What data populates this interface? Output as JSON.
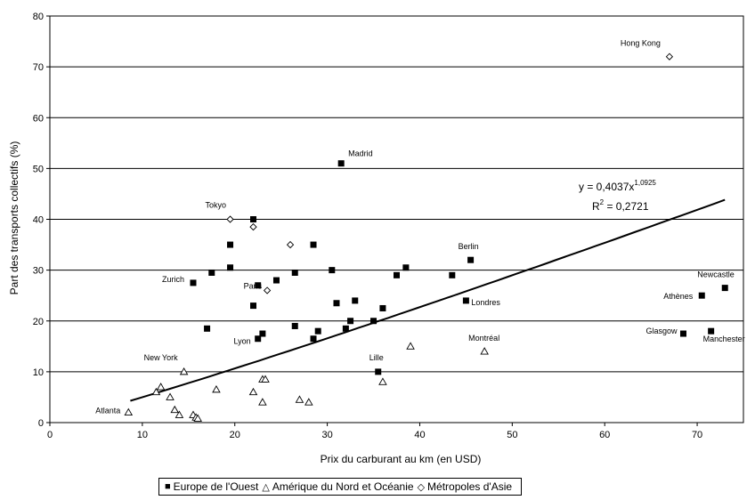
{
  "chart_data": {
    "type": "scatter",
    "xlabel": "Prix du carburant au km (en USD)",
    "ylabel": "Part des transports collectifs (%)",
    "xlim": [
      0,
      75
    ],
    "ylim": [
      0,
      80
    ],
    "xticks": [
      0,
      10,
      20,
      30,
      40,
      50,
      60,
      70
    ],
    "yticks": [
      0,
      10,
      20,
      30,
      40,
      50,
      60,
      70,
      80
    ],
    "grid": "horizontal",
    "legend_position": "bottom",
    "series": [
      {
        "name": "Europe de l'Ouest",
        "marker": "square",
        "points": [
          {
            "x": 31.5,
            "y": 51.0,
            "label": "Madrid"
          },
          {
            "x": 22.0,
            "y": 40.0
          },
          {
            "x": 19.5,
            "y": 35.0
          },
          {
            "x": 28.5,
            "y": 35.0
          },
          {
            "x": 19.5,
            "y": 30.5
          },
          {
            "x": 17.5,
            "y": 29.5
          },
          {
            "x": 15.5,
            "y": 27.5,
            "label": "Zurich"
          },
          {
            "x": 22.5,
            "y": 27.0
          },
          {
            "x": 24.5,
            "y": 28.0
          },
          {
            "x": 26.5,
            "y": 29.5
          },
          {
            "x": 30.5,
            "y": 30.0
          },
          {
            "x": 38.5,
            "y": 30.5
          },
          {
            "x": 37.5,
            "y": 29.0
          },
          {
            "x": 43.5,
            "y": 29.0
          },
          {
            "x": 45.5,
            "y": 32.0,
            "label": "Berlin"
          },
          {
            "x": 22.0,
            "y": 23.0
          },
          {
            "x": 31.0,
            "y": 23.5
          },
          {
            "x": 33.0,
            "y": 24.0
          },
          {
            "x": 36.0,
            "y": 22.5
          },
          {
            "x": 45.0,
            "y": 24.0,
            "label": "Londres"
          },
          {
            "x": 17.0,
            "y": 18.5
          },
          {
            "x": 22.5,
            "y": 16.5,
            "label": "Lyon"
          },
          {
            "x": 23.0,
            "y": 17.5
          },
          {
            "x": 26.5,
            "y": 19.0
          },
          {
            "x": 28.5,
            "y": 16.5
          },
          {
            "x": 29.0,
            "y": 18.0
          },
          {
            "x": 32.0,
            "y": 18.5
          },
          {
            "x": 32.5,
            "y": 20.0
          },
          {
            "x": 35.0,
            "y": 20.0
          },
          {
            "x": 35.5,
            "y": 10.0,
            "label": "Lille"
          },
          {
            "x": 68.5,
            "y": 17.5,
            "label": "Glasgow"
          },
          {
            "x": 71.5,
            "y": 18.0,
            "label": "Manchester"
          },
          {
            "x": 70.5,
            "y": 25.0,
            "label": "Athènes"
          },
          {
            "x": 73.0,
            "y": 26.5,
            "label": "Newcastle"
          }
        ]
      },
      {
        "name": "Amérique du Nord et Océanie",
        "marker": "triangle",
        "points": [
          {
            "x": 8.5,
            "y": 2.0,
            "label": "Atlanta"
          },
          {
            "x": 11.5,
            "y": 6.0
          },
          {
            "x": 12.0,
            "y": 7.0
          },
          {
            "x": 13.0,
            "y": 5.0
          },
          {
            "x": 13.5,
            "y": 2.5
          },
          {
            "x": 14.0,
            "y": 1.5
          },
          {
            "x": 14.5,
            "y": 10.0,
            "label": "New York"
          },
          {
            "x": 15.5,
            "y": 1.5
          },
          {
            "x": 15.8,
            "y": 1.0
          },
          {
            "x": 16.0,
            "y": 0.8
          },
          {
            "x": 18.0,
            "y": 6.5
          },
          {
            "x": 22.0,
            "y": 6.0
          },
          {
            "x": 23.0,
            "y": 8.5
          },
          {
            "x": 23.3,
            "y": 8.5
          },
          {
            "x": 23.0,
            "y": 4.0
          },
          {
            "x": 27.0,
            "y": 4.5
          },
          {
            "x": 28.0,
            "y": 4.0
          },
          {
            "x": 36.0,
            "y": 8.0
          },
          {
            "x": 39.0,
            "y": 15.0
          },
          {
            "x": 47.0,
            "y": 14.0,
            "label": "Montréal"
          }
        ]
      },
      {
        "name": "Métropoles d'Asie",
        "marker": "diamond",
        "points": [
          {
            "x": 67.0,
            "y": 72.0,
            "label": "Hong Kong"
          },
          {
            "x": 19.5,
            "y": 40.0,
            "label": "Tokyo"
          },
          {
            "x": 22.0,
            "y": 38.5
          },
          {
            "x": 26.0,
            "y": 35.0
          },
          {
            "x": 23.5,
            "y": 26.0,
            "label": "Paris"
          }
        ]
      }
    ],
    "trendline": {
      "type": "power",
      "a": 0.4037,
      "b": 1.0925,
      "x_range": [
        8.7,
        73.0
      ],
      "equation_prefix": "y = 0,4037x",
      "equation_exponent": "1,0925",
      "r2_prefix": "R",
      "r2_exponent": "2",
      "r2_suffix": " = 0,2721"
    }
  }
}
